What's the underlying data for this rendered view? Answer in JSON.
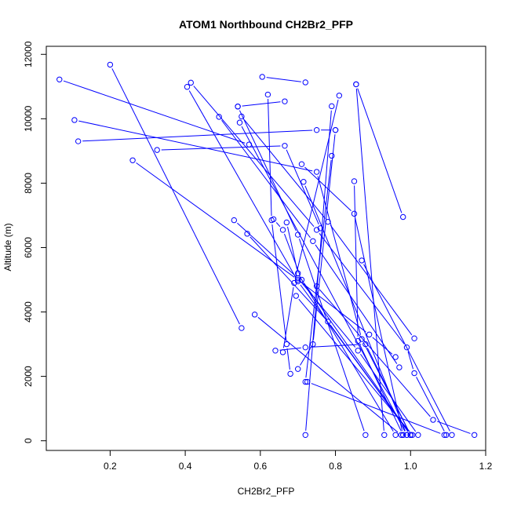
{
  "chart_data": {
    "type": "line",
    "title": "ATOM1 Northbound CH2Br2_PFP",
    "xlabel": "CH2Br2_PFP",
    "ylabel": "Altitude (m)",
    "xlim": [
      0.03,
      1.2
    ],
    "ylim": [
      -300,
      12250
    ],
    "xticks": [
      0.2,
      0.4,
      0.6,
      0.8,
      1.0,
      1.2
    ],
    "xtick_labels": [
      "0.2",
      "0.4",
      "0.6",
      "0.8",
      "1.0",
      "1.2"
    ],
    "yticks": [
      0,
      2000,
      4000,
      6000,
      8000,
      10000,
      12000
    ],
    "ytick_labels": [
      "0",
      "2000",
      "4000",
      "6000",
      "8000",
      "10000",
      "12000"
    ],
    "grid": false,
    "legend": "none",
    "color": "#0000ff",
    "marker": "open-circle",
    "series": [
      {
        "x": [
          0.2,
          0.55
        ],
        "y": [
          11680,
          3500
        ]
      },
      {
        "x": [
          0.065,
          0.57
        ],
        "y": [
          11220,
          9200
        ]
      },
      {
        "x": [
          0.605,
          0.72
        ],
        "y": [
          11300,
          11130
        ]
      },
      {
        "x": [
          0.415,
          0.75,
          0.99,
          1.01,
          1.095
        ],
        "y": [
          11120,
          6550,
          2900,
          2100,
          180
        ]
      },
      {
        "x": [
          0.405,
          0.7,
          1.0
        ],
        "y": [
          10990,
          4950,
          180
        ]
      },
      {
        "x": [
          0.855,
          0.98
        ],
        "y": [
          11070,
          6950
        ]
      },
      {
        "x": [
          0.855,
          0.93
        ],
        "y": [
          11070,
          180
        ]
      },
      {
        "x": [
          0.62,
          0.63,
          0.67,
          0.68
        ],
        "y": [
          10750,
          6850,
          3000,
          2080
        ]
      },
      {
        "x": [
          0.81,
          0.69,
          0.66
        ],
        "y": [
          10720,
          4900,
          2750
        ]
      },
      {
        "x": [
          0.54,
          0.665
        ],
        "y": [
          10380,
          10540
        ]
      },
      {
        "x": [
          0.54,
          0.7,
          0.88
        ],
        "y": [
          10380,
          6400,
          180
        ]
      },
      {
        "x": [
          0.79,
          0.72
        ],
        "y": [
          10390,
          180
        ]
      },
      {
        "x": [
          0.105,
          0.75,
          0.87,
          1.0
        ],
        "y": [
          9960,
          8350,
          3160,
          180
        ]
      },
      {
        "x": [
          0.49,
          0.74,
          0.97
        ],
        "y": [
          10060,
          6200,
          2280
        ]
      },
      {
        "x": [
          0.55,
          0.78,
          1.01
        ],
        "y": [
          10070,
          6800,
          3180
        ]
      },
      {
        "x": [
          0.545,
          0.99
        ],
        "y": [
          9880,
          180
        ]
      },
      {
        "x": [
          0.115,
          0.75,
          0.8
        ],
        "y": [
          9300,
          9650,
          9650
        ]
      },
      {
        "x": [
          0.8,
          0.74,
          0.7
        ],
        "y": [
          9650,
          3000,
          2230
        ]
      },
      {
        "x": [
          0.325,
          0.665,
          0.76
        ],
        "y": [
          9030,
          9160,
          6600
        ]
      },
      {
        "x": [
          0.26,
          0.7,
          0.89,
          0.96
        ],
        "y": [
          8710,
          5000,
          3300,
          2600
        ]
      },
      {
        "x": [
          0.71,
          0.85,
          0.98
        ],
        "y": [
          8590,
          7050,
          180
        ]
      },
      {
        "x": [
          0.715,
          0.99
        ],
        "y": [
          8040,
          180
        ]
      },
      {
        "x": [
          0.85,
          0.86,
          0.98
        ],
        "y": [
          8060,
          3100,
          180
        ]
      },
      {
        "x": [
          0.79,
          0.72
        ],
        "y": [
          8850,
          1830
        ]
      },
      {
        "x": [
          0.635,
          0.66,
          0.71,
          1.0
        ],
        "y": [
          6880,
          6550,
          5000,
          180
        ]
      },
      {
        "x": [
          0.67,
          0.7,
          0.96
        ],
        "y": [
          6780,
          5200,
          180
        ]
      },
      {
        "x": [
          0.53,
          0.7,
          0.86,
          1.02
        ],
        "y": [
          6850,
          5050,
          2800,
          180
        ]
      },
      {
        "x": [
          0.565,
          0.78,
          1.0
        ],
        "y": [
          6430,
          3700,
          180
        ]
      },
      {
        "x": [
          0.87,
          1.11
        ],
        "y": [
          5600,
          180
        ]
      },
      {
        "x": [
          0.75,
          1.06,
          1.17
        ],
        "y": [
          4800,
          650,
          180
        ]
      },
      {
        "x": [
          0.585,
          0.975
        ],
        "y": [
          3920,
          180
        ]
      },
      {
        "x": [
          0.725,
          1.09
        ],
        "y": [
          1830,
          180
        ]
      },
      {
        "x": [
          0.695,
          1.005
        ],
        "y": [
          4500,
          180
        ]
      },
      {
        "x": [
          0.64,
          0.72,
          0.88,
          1.0
        ],
        "y": [
          2800,
          2900,
          3000,
          180
        ]
      }
    ]
  }
}
